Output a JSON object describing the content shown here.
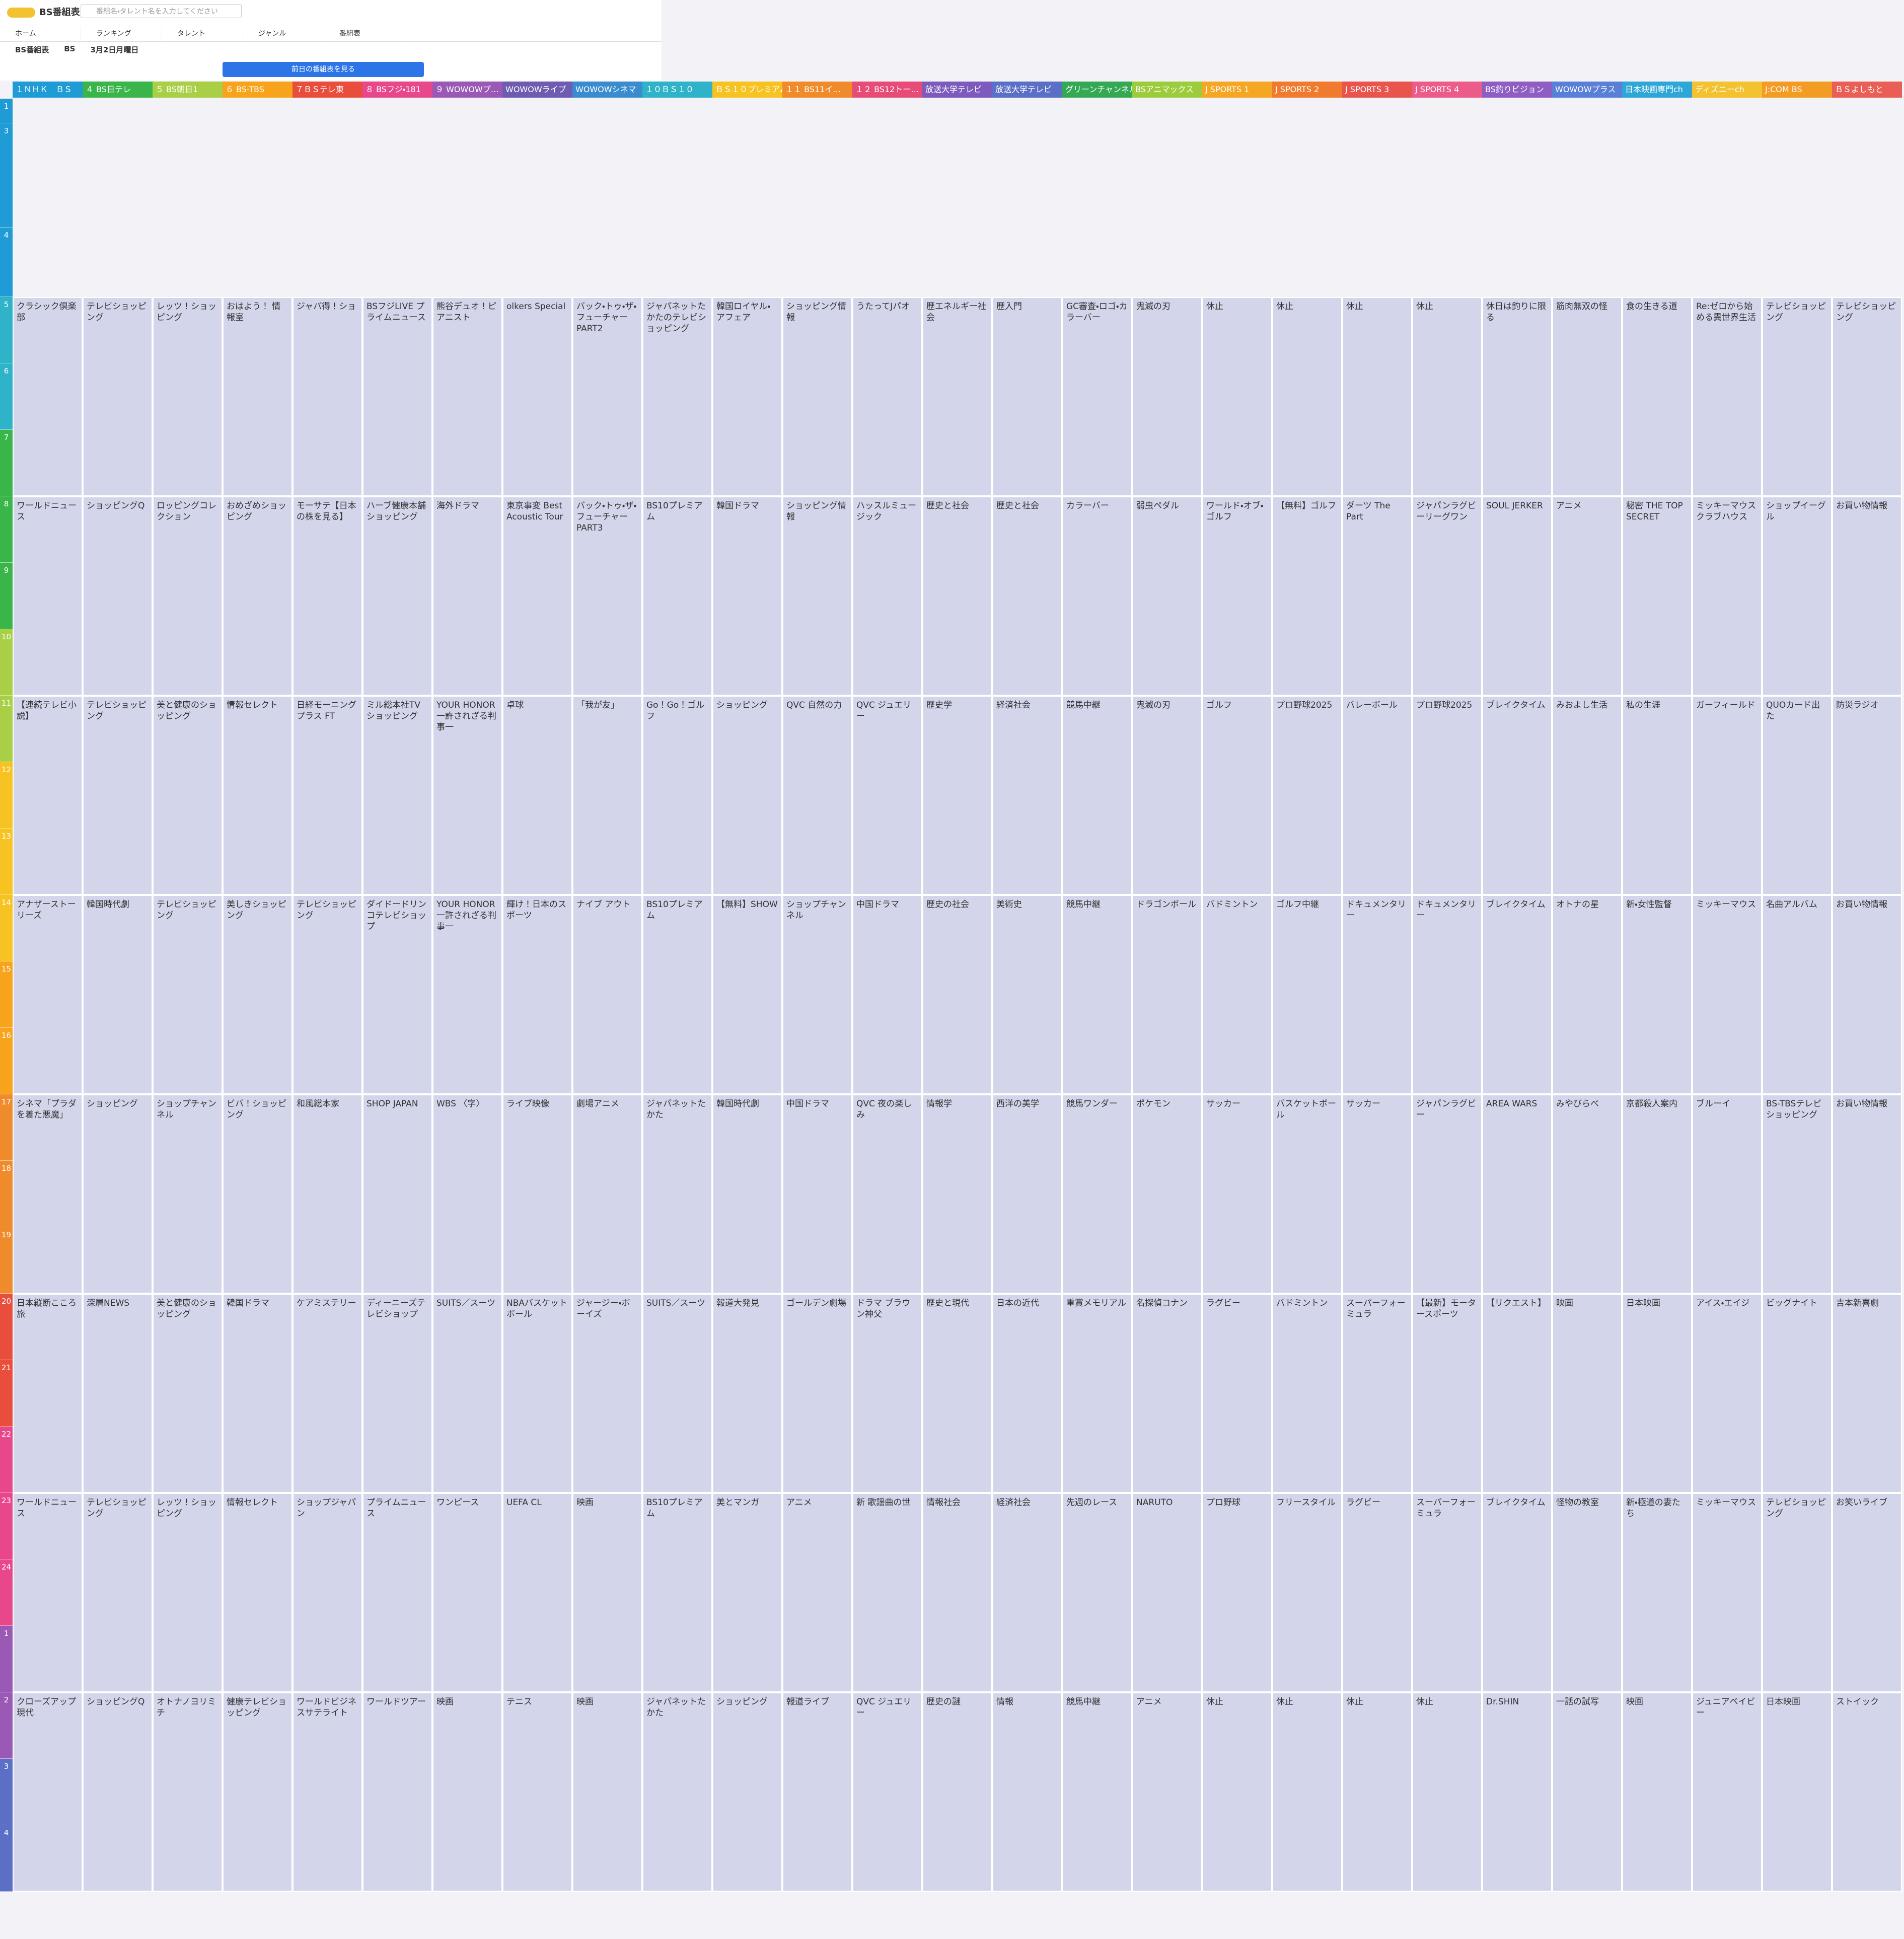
{
  "header": {
    "logo": "BS番組表",
    "search_placeholder": "番組名・タレント名を入力してください",
    "nav": [
      "ホーム",
      "ランキング",
      "タレント",
      "ジャンル",
      "番組表"
    ],
    "controls": [
      "BS番組表",
      "BS",
      "3月2日月曜日"
    ],
    "prev_button": "前日の番組表を見る"
  },
  "grid": {
    "hours": [
      "1",
      "3",
      "4",
      "5",
      "6",
      "7",
      "8",
      "9",
      "10",
      "11",
      "12",
      "13",
      "14",
      "15",
      "16",
      "17",
      "18",
      "19",
      "20",
      "21",
      "22",
      "23",
      "24",
      "1",
      "2",
      "3",
      "4"
    ],
    "channels": [
      {
        "name": "１ＮＨＫ　ＢＳ",
        "color": "#1f9bd6",
        "programs": [
          "クラシック倶楽部",
          "ワールドニュース",
          "【連続テレビ小説】",
          "アナザーストーリーズ",
          "シネマ「プラダを着た悪魔」",
          "日本縦断こころ旅",
          "ワールドニュース",
          "クローズアップ現代"
        ]
      },
      {
        "name": "４ BS日テレ",
        "color": "#39b54a",
        "programs": [
          "テレビショッピング",
          "ショッピングQ",
          "テレビショッピング",
          "韓国時代劇",
          "ショッピング",
          "深層NEWS",
          "テレビショッピング",
          "ショッピングQ"
        ]
      },
      {
        "name": "５ BS朝日1",
        "color": "#a8cf45",
        "programs": [
          "レッツ！ショッピング",
          "ロッピングコレクション",
          "美と健康のショッピング",
          "テレビショッピング",
          "ショップチャンネル",
          "美と健康のショッピング",
          "レッツ！ショッピング",
          "オトナノヨリミチ"
        ]
      },
      {
        "name": "６ BS-TBS",
        "color": "#f7a31c",
        "programs": [
          "おはよう！ 情報室",
          "おめざめショッピング",
          "情報セレクト",
          "美しきショッピング",
          "ビバ！ショッピング",
          "韓国ドラマ",
          "情報セレクト",
          "健康テレビショッピング"
        ]
      },
      {
        "name": "７ＢＳテレ東",
        "color": "#e94e3d",
        "programs": [
          "ジャパ得！ショ",
          "モーサテ【日本の株を見る】",
          "日経モーニングプラス FT",
          "テレビショッピング",
          "和風総本家",
          "ケアミステリー",
          "ショップジャパン",
          "ワールドビジネスサテライト"
        ]
      },
      {
        "name": "８ BSフジ・181",
        "color": "#e8488b",
        "programs": [
          "BSフジLIVE プライムニュース",
          "ハーブ健康本舗ショッピング",
          "ミル総本社TVショッピング",
          "ダイドードリンコテレビショップ",
          "SHOP JAPAN",
          "ディーニーズテレビショップ",
          "プライムニュース",
          "ワールドツアー"
        ]
      },
      {
        "name": "９ WOWOWプ…",
        "color": "#9b59b6",
        "programs": [
          "熊谷デュオ！ピアニスト",
          "海外ドラマ",
          "YOUR HONOR 一許されざる判事一",
          "YOUR HONOR 一許されざる判事一",
          "WBS 〈字〉",
          "SUITS／スーツ",
          "ワンピース",
          "映画"
        ]
      },
      {
        "name": "WOWOWライブ",
        "color": "#6f5bb0",
        "programs": [
          "olkers Special",
          "東京事変 Best Acoustic Tour",
          "卓球",
          "輝け！日本のスポーツ",
          "ライブ映像",
          "NBAバスケットボール",
          "UEFA CL",
          "テニス"
        ]
      },
      {
        "name": "WOWOWシネマ",
        "color": "#3a8ccf",
        "programs": [
          "バック・トゥ・ザ・フューチャー PART2",
          "バック・トゥ・ザ・フューチャー PART3",
          "「我が友」",
          "ナイブ アウト",
          "劇場アニメ",
          "ジャージー・ボーイズ",
          "映画",
          "映画"
        ]
      },
      {
        "name": "１０ＢＳ１０",
        "color": "#2eb3c9",
        "programs": [
          "ジャパネットたかたのテレビショッピング",
          "BS10プレミアム",
          "Go！Go！ゴルフ",
          "BS10プレミアム",
          "ジャパネットたかた",
          "SUITS／スーツ",
          "BS10プレミアム",
          "ジャパネットたかた"
        ]
      },
      {
        "name": "ＢＳ１０プレミアム",
        "color": "#f6c322",
        "programs": [
          "韓国ロイヤル・アフェア",
          "韓国ドラマ",
          "ショッピング",
          "【無料】SHOW",
          "韓国時代劇",
          "報道大発見",
          "美とマンガ",
          "ショッピング"
        ]
      },
      {
        "name": "１１ BS11イ…",
        "color": "#f08b2c",
        "programs": [
          "ショッピング情報",
          "ショッピング情報",
          "QVC 自然の力",
          "ショップチャンネル",
          "中国ドラマ",
          "ゴールデン劇場",
          "アニメ",
          "報道ライブ"
        ]
      },
      {
        "name": "１２ BS12トー…",
        "color": "#e74c79",
        "programs": [
          "うたってJパオ",
          "ハッスルミュージック",
          "QVC ジュエリー",
          "中国ドラマ",
          "QVC 夜の楽しみ",
          "ドラマ ブラウン神父",
          "新 歌謡曲の世",
          "QVC ジュエリー"
        ]
      },
      {
        "name": "放送大学テレビ",
        "color": "#7d5bbd",
        "programs": [
          "歴エネルギー社会",
          "歴史と社会",
          "歴史学",
          "歴史の社会",
          "情報学",
          "歴史と現代",
          "情報社会",
          "歴史の謎"
        ]
      },
      {
        "name": "放送大学テレビ",
        "color": "#5b6fc6",
        "programs": [
          "歴入門",
          "歴史と社会",
          "経済社会",
          "美術史",
          "西洋の美学",
          "日本の近代",
          "経済社会",
          "情報"
        ]
      },
      {
        "name": "グリーンチャンネル",
        "color": "#34a853",
        "programs": [
          "GC審査・ロゴ・カラーバー",
          "カラーバー",
          "競馬中継",
          "競馬中継",
          "競馬ワンダー",
          "重賞メモリアル",
          "先週のレース",
          "競馬中継"
        ]
      },
      {
        "name": "BSアニマックス",
        "color": "#9ccc3c",
        "programs": [
          "鬼滅の刃",
          "弱虫ペダル",
          "鬼滅の刃",
          "ドラゴンボール",
          "ポケモン",
          "名探偵コナン",
          "NARUTO",
          "アニメ"
        ]
      },
      {
        "name": "J SPORTS 1",
        "color": "#f5a623",
        "programs": [
          "休止",
          "ワールド・オブ・ゴルフ",
          "ゴルフ",
          "バドミントン",
          "サッカー",
          "ラグビー",
          "プロ野球",
          "休止"
        ]
      },
      {
        "name": "J SPORTS 2",
        "color": "#f07b2f",
        "programs": [
          "休止",
          "【無料】ゴルフ",
          "プロ野球2025",
          "ゴルフ中継",
          "バスケットボール",
          "バドミントン",
          "フリースタイル",
          "休止"
        ]
      },
      {
        "name": "J SPORTS 3",
        "color": "#e9544d",
        "programs": [
          "休止",
          "ダーツ The Part",
          "バレーボール",
          "ドキュメンタリー",
          "サッカー",
          "スーパーフォーミュラ",
          "ラグビー",
          "休止"
        ]
      },
      {
        "name": "J SPORTS 4",
        "color": "#ec5c8a",
        "programs": [
          "休止",
          "ジャパンラグビーリーグワン",
          "プロ野球2025",
          "ドキュメンタリー",
          "ジャパンラグビー",
          "【最新】モータースポーツ",
          "スーパーフォーミュラ",
          "休止"
        ]
      },
      {
        "name": "BS釣りビジョン",
        "color": "#8e5ec2",
        "programs": [
          "休日は釣りに限る",
          "SOUL JERKER",
          "ブレイクタイム",
          "ブレイクタイム",
          "AREA WARS",
          "【リクエスト】",
          "ブレイクタイム",
          "Dr.SHIN"
        ]
      },
      {
        "name": "WOWOWプラス",
        "color": "#5a7fd6",
        "programs": [
          "筋肉無双の怪",
          "アニメ",
          "みおよし生活",
          "オトナの星",
          "みやびらべ",
          "映画",
          "怪物の教室",
          "一話の試写"
        ]
      },
      {
        "name": "日本映画専門ch",
        "color": "#2ea7d8",
        "programs": [
          "食の生きる道",
          "秘密 THE TOP SECRET",
          "私の生涯",
          "新・女性監督",
          "京都殺人案内",
          "日本映画",
          "新・極道の妻たち",
          "映画"
        ]
      },
      {
        "name": "ディズニーch",
        "color": "#f2c230",
        "programs": [
          "Re:ゼロから始める異世界生活",
          "ミッキーマウス クラブハウス",
          "ガーフィールド",
          "ミッキーマウス",
          "ブルーイ",
          "アイス・エイジ",
          "ミッキーマウス",
          "ジュニアベイビー"
        ]
      },
      {
        "name": "J:COM BS",
        "color": "#f39c24",
        "programs": [
          "テレビショッピング",
          "ショップイーグル",
          "QUOカード出た",
          "名曲アルバム",
          "BS-TBSテレビショッピング",
          "ビッグナイト",
          "テレビショッピング",
          "日本映画"
        ]
      },
      {
        "name": "ＢＳよしもと",
        "color": "#e95f55",
        "programs": [
          "テレビショッピング",
          "お買い物情報",
          "防災ラジオ",
          "お買い物情報",
          "お買い物情報",
          "吉本新喜劇",
          "お笑いライブ",
          "ストイック"
        ]
      }
    ]
  }
}
